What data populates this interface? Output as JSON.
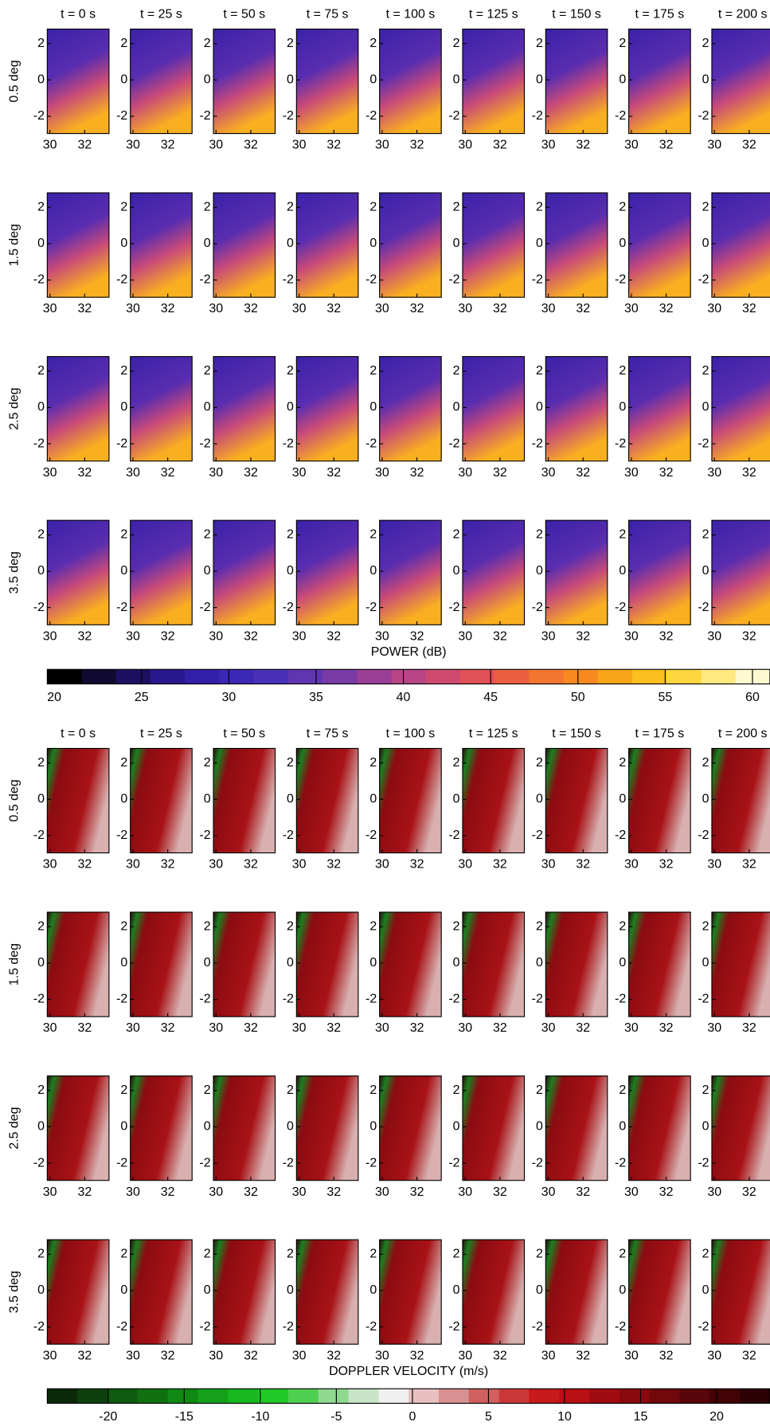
{
  "chart_data": [
    {
      "type": "heatmap",
      "column_titles": [
        "t = 0 s",
        "t = 25 s",
        "t = 50 s",
        "t = 75 s",
        "t = 100 s",
        "t = 125 s",
        "t = 150 s",
        "t = 175 s",
        "t = 200 s"
      ],
      "row_labels": [
        "0.5 deg",
        "1.5 deg",
        "2.5 deg",
        "3.5 deg"
      ],
      "xlim": [
        29.85,
        33.4
      ],
      "xticks": [
        30,
        32
      ],
      "ylim": [
        -2.95,
        2.8
      ],
      "yticks": [
        -2,
        0,
        2
      ],
      "colorbar": {
        "label": "POWER (dB)",
        "lim": [
          19.6,
          61
        ],
        "ticks": [
          20,
          25,
          30,
          35,
          40,
          45,
          50,
          55,
          60
        ],
        "colors": [
          "#000000",
          "#100a30",
          "#1e1060",
          "#2a1890",
          "#3420a8",
          "#3c28b4",
          "#4a30b8",
          "#6035b0",
          "#7a3aa8",
          "#9a3e98",
          "#b84488",
          "#d04a70",
          "#e05258",
          "#ec6040",
          "#f27530",
          "#f68a20",
          "#f9a518",
          "#fbbf20",
          "#fdd640",
          "#fee880",
          "#fff8d0"
        ]
      }
    },
    {
      "type": "heatmap",
      "column_titles": [
        "t = 0 s",
        "t = 25 s",
        "t = 50 s",
        "t = 75 s",
        "t = 100 s",
        "t = 125 s",
        "t = 150 s",
        "t = 175 s",
        "t = 200 s"
      ],
      "row_labels": [
        "0.5 deg",
        "1.5 deg",
        "2.5 deg",
        "3.5 deg"
      ],
      "xlim": [
        29.85,
        33.4
      ],
      "xticks": [
        30,
        32
      ],
      "ylim": [
        -2.95,
        2.8
      ],
      "yticks": [
        -2,
        0,
        2
      ],
      "colorbar": {
        "label": "DOPPLER VELOCITY (m/s)",
        "lim": [
          -24,
          23.5
        ],
        "ticks": [
          -20,
          -15,
          -10,
          -5,
          0,
          5,
          10,
          15,
          20
        ],
        "colors": [
          "#0a2a0a",
          "#0e400e",
          "#105a10",
          "#107010",
          "#108a14",
          "#14a01a",
          "#18b820",
          "#20c828",
          "#50d050",
          "#90d890",
          "#c8e4c8",
          "#f0f0f0",
          "#e8c0c0",
          "#d89090",
          "#d06060",
          "#cc3838",
          "#c81a1a",
          "#b81014",
          "#a00c10",
          "#880a0e",
          "#70080c",
          "#58060a",
          "#420406",
          "#2c0204"
        ]
      }
    }
  ]
}
